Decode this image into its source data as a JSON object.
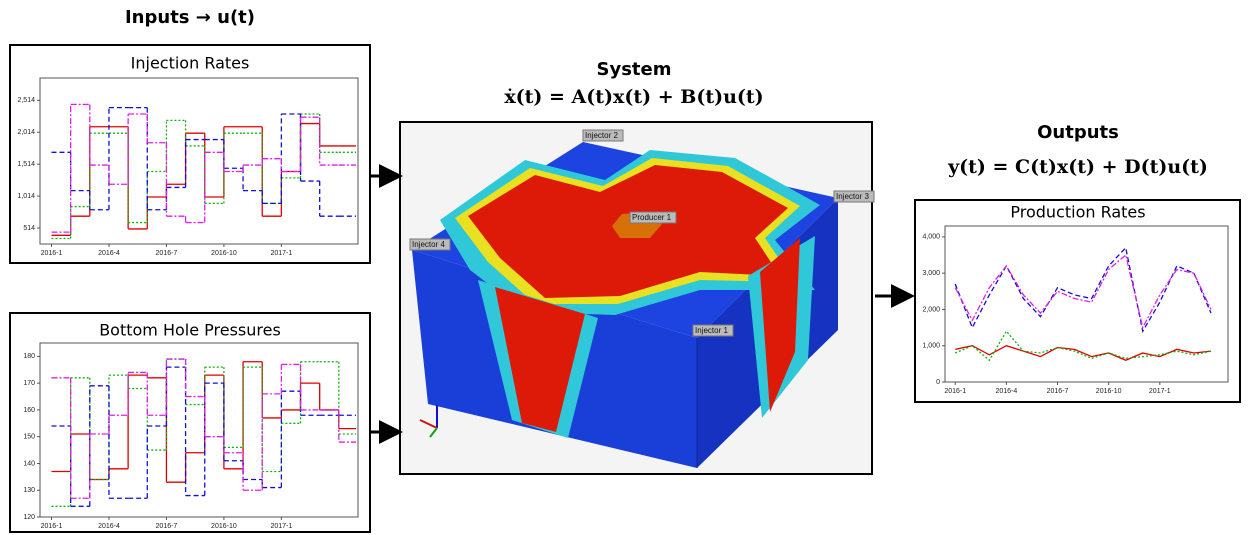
{
  "inputs_title": "Inputs → u(t)",
  "system_title": "System",
  "system_equation": "ẋ(t) = A(t)x(t) + B(t)u(t)",
  "outputs_title": "Outputs",
  "outputs_equation": "y(t) = C(t)x(t) + D(t)u(t)",
  "reservoir_labels": [
    "Injector 2",
    "Injector 3",
    "Injector 4",
    "Producer 1",
    "Injector 1"
  ],
  "panels": [
    {
      "type": "line",
      "step": true,
      "title": "Injection Rates",
      "x": [
        0,
        1,
        2,
        3,
        4,
        5,
        6,
        7,
        8,
        9,
        10,
        11,
        12,
        13,
        14,
        15
      ],
      "xlim": [
        -0.6,
        16
      ],
      "xticks": [
        {
          "value": 0,
          "label": "2016-1"
        },
        {
          "value": 3,
          "label": "2016-4"
        },
        {
          "value": 6,
          "label": "2016-7"
        },
        {
          "value": 9,
          "label": "2016-10"
        },
        {
          "value": 12,
          "label": "2017-1"
        }
      ],
      "ylim": [
        264,
        2864
      ],
      "yticks": [
        514,
        {
          "value": 1014,
          "label": "1,014"
        },
        {
          "value": 1514,
          "label": "1,514"
        },
        {
          "value": 2014,
          "label": "2,014"
        },
        {
          "value": 2514,
          "label": "2,514"
        }
      ],
      "series": [
        {
          "color": "#e00000",
          "dash": "",
          "values": [
            400,
            700,
            2100,
            2100,
            500,
            1000,
            1200,
            2000,
            1000,
            2100,
            2100,
            700,
            1400,
            2150,
            1800,
            1800
          ]
        },
        {
          "color": "#10b010",
          "dash": "2,2",
          "values": [
            350,
            850,
            2000,
            2000,
            600,
            1400,
            2200,
            1800,
            900,
            2000,
            2000,
            900,
            1300,
            2300,
            1700,
            1700
          ]
        },
        {
          "color": "#1010d0",
          "dash": "5,3",
          "values": [
            1700,
            1100,
            800,
            2400,
            2400,
            800,
            1150,
            1900,
            1900,
            1450,
            1100,
            900,
            2300,
            1250,
            700,
            700
          ]
        },
        {
          "color": "#e020e0",
          "dash": "6,2,2,2",
          "values": [
            450,
            2450,
            1500,
            1200,
            2300,
            1850,
            700,
            600,
            1700,
            1400,
            1500,
            1600,
            1400,
            2250,
            1500,
            1500
          ]
        }
      ]
    },
    {
      "type": "line",
      "step": true,
      "title": "Bottom Hole Pressures",
      "x": [
        0,
        1,
        2,
        3,
        4,
        5,
        6,
        7,
        8,
        9,
        10,
        11,
        12,
        13,
        14,
        15
      ],
      "xlim": [
        -0.6,
        16
      ],
      "xticks": [
        {
          "value": 0,
          "label": "2016-1"
        },
        {
          "value": 3,
          "label": "2016-4"
        },
        {
          "value": 6,
          "label": "2016-7"
        },
        {
          "value": 9,
          "label": "2016-10"
        },
        {
          "value": 12,
          "label": "2017-1"
        }
      ],
      "ylim": [
        120,
        185
      ],
      "yticks": [
        120,
        130,
        140,
        150,
        160,
        170,
        180
      ],
      "series": [
        {
          "color": "#e00000",
          "dash": "",
          "values": [
            137,
            151,
            134,
            138,
            173,
            172,
            133,
            144,
            173,
            138,
            178,
            157,
            160,
            170,
            160,
            153
          ]
        },
        {
          "color": "#10b010",
          "dash": "2,2",
          "values": [
            124,
            172,
            134,
            173,
            168,
            145,
            179,
            162,
            176,
            146,
            176,
            137,
            155,
            178,
            178,
            151
          ]
        },
        {
          "color": "#1010d0",
          "dash": "5,3",
          "values": [
            154,
            124,
            169,
            127,
            127,
            154,
            176,
            128,
            170,
            141,
            134,
            131,
            167,
            158,
            158,
            158
          ]
        },
        {
          "color": "#e020e0",
          "dash": "6,2,2,2",
          "values": [
            172,
            127,
            151,
            158,
            174,
            158,
            179,
            165,
            150,
            144,
            130,
            166,
            177,
            160,
            160,
            148
          ]
        }
      ]
    },
    {
      "type": "line",
      "step": false,
      "title": "Production Rates",
      "x": [
        0,
        1,
        2,
        3,
        4,
        5,
        6,
        7,
        8,
        9,
        10,
        11,
        12,
        13,
        14,
        15
      ],
      "xlim": [
        -0.6,
        16
      ],
      "xticks": [
        {
          "value": 0,
          "label": "2016-1"
        },
        {
          "value": 3,
          "label": "2016-4"
        },
        {
          "value": 6,
          "label": "2016-7"
        },
        {
          "value": 9,
          "label": "2016-10"
        },
        {
          "value": 12,
          "label": "2017-1"
        }
      ],
      "ylim": [
        0,
        4300
      ],
      "yticks": [
        0,
        {
          "value": 1000,
          "label": "1,000"
        },
        {
          "value": 2000,
          "label": "2,000"
        },
        {
          "value": 3000,
          "label": "3,000"
        },
        {
          "value": 4000,
          "label": "4,000"
        }
      ],
      "series": [
        {
          "color": "#1010d0",
          "dash": "5,3",
          "values": [
            2700,
            1500,
            2400,
            3200,
            2300,
            1800,
            2600,
            2400,
            2300,
            3200,
            3700,
            1400,
            2200,
            3200,
            3000,
            1900
          ]
        },
        {
          "color": "#e020e0",
          "dash": "6,2,2,2",
          "values": [
            2600,
            1700,
            2600,
            3200,
            2400,
            1900,
            2500,
            2300,
            2200,
            3100,
            3500,
            1500,
            2400,
            3100,
            3000,
            2000
          ]
        },
        {
          "color": "#e00000",
          "dash": "",
          "values": [
            900,
            1000,
            750,
            1000,
            850,
            700,
            950,
            900,
            700,
            800,
            600,
            800,
            700,
            900,
            800,
            850
          ]
        },
        {
          "color": "#10b010",
          "dash": "2,2",
          "values": [
            800,
            1000,
            600,
            1400,
            850,
            800,
            950,
            850,
            650,
            800,
            650,
            700,
            750,
            850,
            750,
            850
          ]
        }
      ]
    }
  ]
}
